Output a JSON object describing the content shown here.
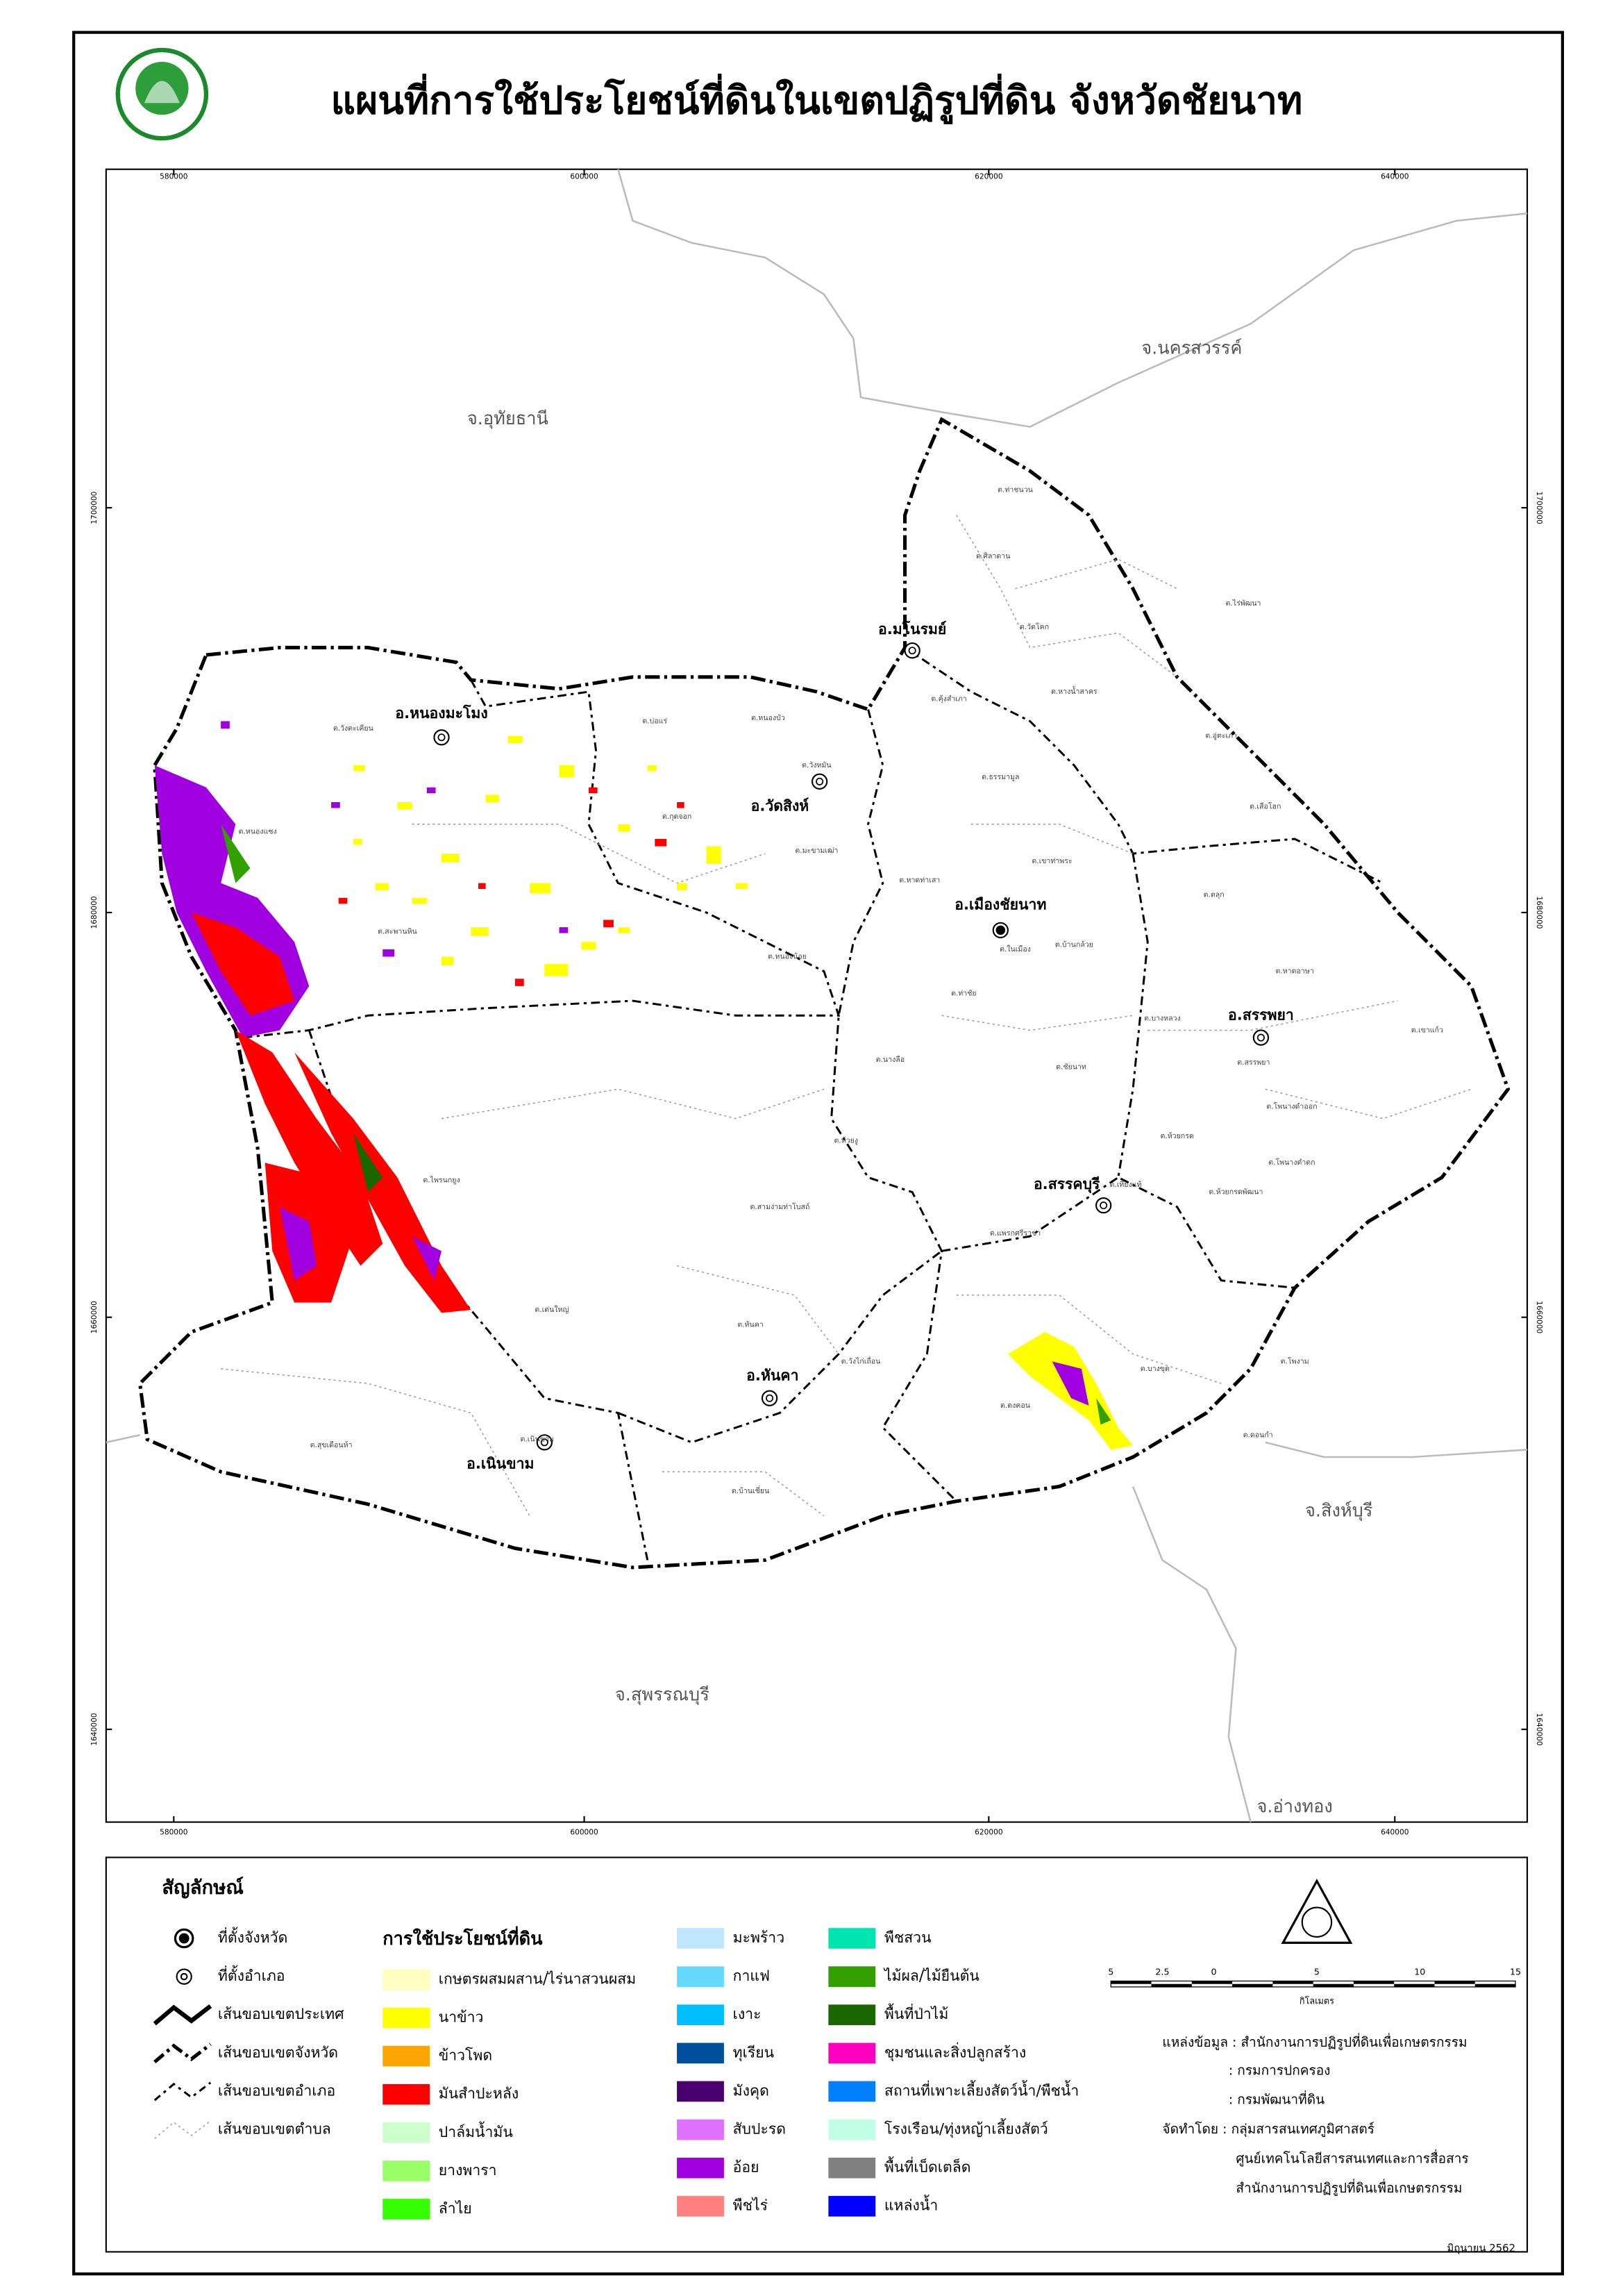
{
  "title": "แผนที่การใช้ประโยชน์ที่ดินในเขตปฏิรูปที่ดิน จังหวัดชัยนาท",
  "coordinates": {
    "x": [
      "580000",
      "600000",
      "620000",
      "640000"
    ],
    "y": [
      "1700000",
      "1680000",
      "1660000",
      "1640000"
    ]
  },
  "provinces": [
    "จ.อุทัยธานี",
    "จ.นครสวรรค์",
    "จ.สิงห์บุรี",
    "จ.สุพรรณบุรี",
    "จ.อ่างทอง"
  ],
  "districts": [
    "อ.หนองมะโมง",
    "อ.วัดสิงห์",
    "อ.มโนรมย์",
    "อ.เมืองชัยนาท",
    "อ.สรรพยา",
    "อ.สรรคบุรี",
    "อ.หันคา",
    "อ.เนินขาม"
  ],
  "subdistricts": [
    "ต.ท่าชนวน",
    "ต.ศิลาดาน",
    "ต.วัดโคก",
    "ต.ไร่พัฒนา",
    "ต.คุ้งสำเภา",
    "ต.หางน้ำสาคร",
    "ต.อู่ตะเภา",
    "ต.ธรรมามูล",
    "ต.เสือโฮก",
    "ต.เขาท่าพระ",
    "ต.หาดท่าเสา",
    "ต.ตลุก",
    "ต.บ้านกล้วย",
    "ต.ในเมือง",
    "ต.ท่าชัย",
    "ต.หาดอาษา",
    "ต.บางหลวง",
    "ต.เขาแก้ว",
    "ต.สรรพยา",
    "ต.นางลือ",
    "ต.ชัยนาท",
    "ต.โพนางดำออก",
    "ต.ห้วยกรด",
    "ต.เที่ยงแท้",
    "ต.โพนางดำตก",
    "ต.ห้วยกรดพัฒนา",
    "ต.แพรกศรีราชา",
    "ต.บางขุด",
    "ต.โพงาม",
    "ต.ดงคอน",
    "ต.ดอนกำ",
    "ต.วังตะเคียน",
    "ต.บ่อแร่",
    "ต.หนองบัว",
    "ต.วังหมัน",
    "ต.หนองแซง",
    "ต.มะขามเฒ่า",
    "ต.สะพานหิน",
    "ต.หนองน้อย",
    "ต.กุดจอก",
    "ต.ห้วยงู",
    "ต.สามง่ามท่าโบสถ์",
    "ต.ไพรนกยูง",
    "ต.เด่นใหญ่",
    "ต.หันคา",
    "ต.วังไก่เถื่อน",
    "ต.สุขเดือนห้า",
    "ต.เนินขาม",
    "ต.บ้านเชี่ยน"
  ],
  "legend": {
    "title": "สัญลักษณ์",
    "symbols": [
      "ที่ตั้งจังหวัด",
      "ที่ตั้งอำเภอ",
      "เส้นขอบเขตประเทศ",
      "เส้นขอบเขตจังหวัด",
      "เส้นขอบเขตอำเภอ",
      "เส้นขอบเขตตำบล"
    ],
    "landuse_title": "การใช้ประโยชน์ที่ดิน",
    "landuse": [
      {
        "label": "เกษตรผสมผสาน/ไร่นาสวนผสม",
        "color": "#ffffc0"
      },
      {
        "label": "นาข้าว",
        "color": "#ffff00"
      },
      {
        "label": "ข้าวโพด",
        "color": "#ffa500"
      },
      {
        "label": "มันสำปะหลัง",
        "color": "#ff0000"
      },
      {
        "label": "ปาล์มน้ำมัน",
        "color": "#ccffcc"
      },
      {
        "label": "ยางพารา",
        "color": "#99ff66"
      },
      {
        "label": "ลำไย",
        "color": "#33ff00"
      },
      {
        "label": "มะพร้าว",
        "color": "#bfe6ff"
      },
      {
        "label": "กาแฟ",
        "color": "#66d9ff"
      },
      {
        "label": "เงาะ",
        "color": "#00bfff"
      },
      {
        "label": "ทุเรียน",
        "color": "#0050a0"
      },
      {
        "label": "มังคุด",
        "color": "#4b0070"
      },
      {
        "label": "สับปะรด",
        "color": "#e070ff"
      },
      {
        "label": "อ้อย",
        "color": "#a000e0"
      },
      {
        "label": "พืชไร่",
        "color": "#ff8080"
      },
      {
        "label": "พืชสวน",
        "color": "#00e6b0"
      },
      {
        "label": "ไม้ผล/ไม้ยืนต้น",
        "color": "#33a000"
      },
      {
        "label": "พื้นที่ป่าไม้",
        "color": "#1a6600"
      },
      {
        "label": "ชุมชนและสิ่งปลูกสร้าง",
        "color": "#ff00c0"
      },
      {
        "label": "สถานที่เพาะเลี้ยงสัตว์น้ำ/พืชน้ำ",
        "color": "#0080ff"
      },
      {
        "label": "โรงเรือน/ทุ่งหญ้าเลี้ยงสัตว์",
        "color": "#c0ffe6"
      },
      {
        "label": "พื้นที่เบ็ดเตล็ด",
        "color": "#808080"
      },
      {
        "label": "แหล่งน้ำ",
        "color": "#0000ff"
      }
    ]
  },
  "scale": {
    "ticks": [
      "5",
      "2.5",
      "0",
      "5",
      "10",
      "15"
    ],
    "unit": "กิโลเมตร"
  },
  "credits": [
    "แหล่งข้อมูล : สำนักงานการปฏิรูปที่ดินเพื่อเกษตรกรรม",
    ": กรมการปกครอง",
    ": กรมพัฒนาที่ดิน",
    "จัดทำโดย : กลุ่มสารสนเทศภูมิศาสตร์",
    "ศูนย์เทคโนโลยีสารสนเทศและการสื่อสาร",
    "สำนักงานการปฏิรูปที่ดินเพื่อเกษตรกรรม"
  ],
  "date": "มิถุนายน 2562"
}
